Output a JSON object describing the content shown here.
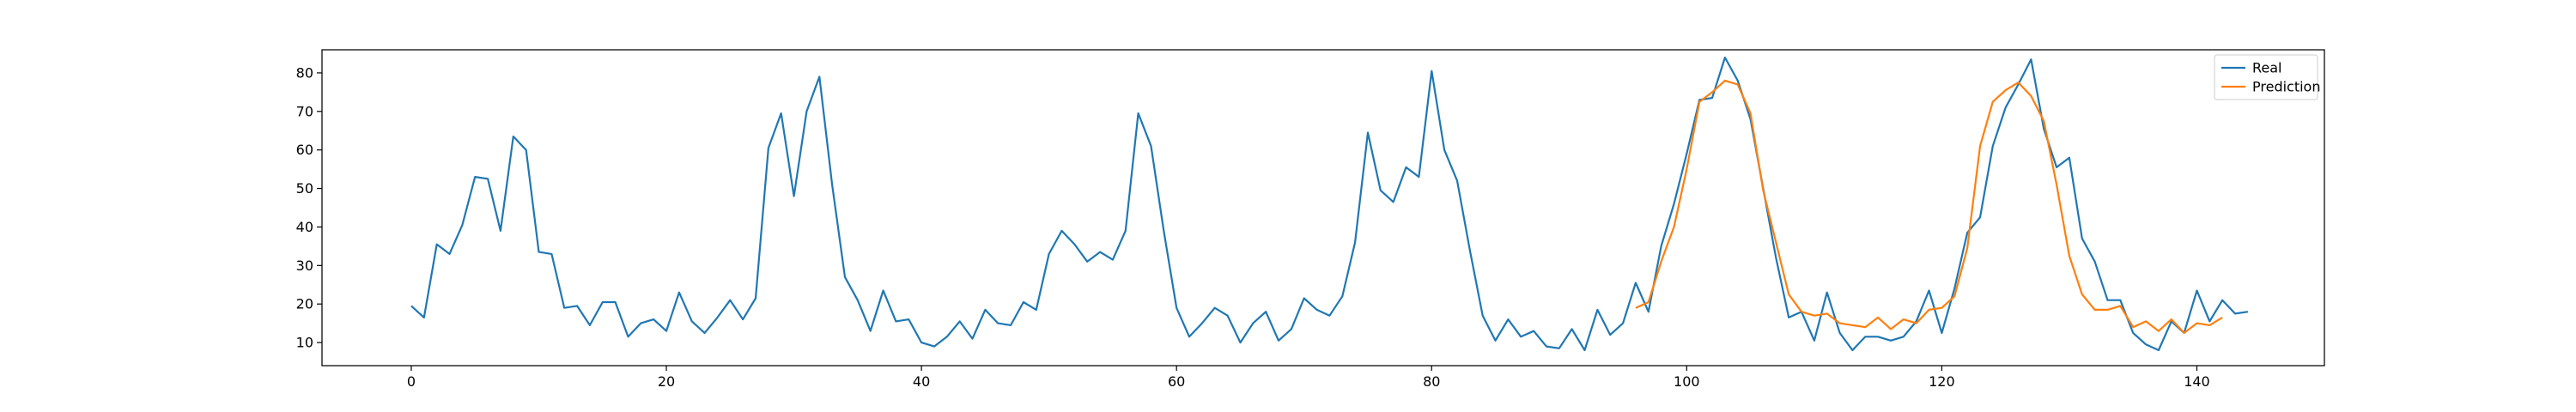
{
  "chart_data": {
    "type": "line",
    "title": "",
    "xlabel": "",
    "ylabel": "",
    "xlim": [
      -7,
      150
    ],
    "ylim": [
      4,
      86
    ],
    "xticks": [
      0,
      20,
      40,
      60,
      80,
      100,
      120,
      140
    ],
    "yticks": [
      10,
      20,
      30,
      40,
      50,
      60,
      70,
      80
    ],
    "grid": false,
    "legend_position": "top-right",
    "series": [
      {
        "name": "Real",
        "color": "#1f77b4",
        "x_start": 0,
        "values": [
          19.5,
          16.5,
          35.5,
          33,
          40.5,
          53,
          52.5,
          39,
          63.5,
          60,
          33.5,
          33,
          19,
          19.5,
          14.5,
          20.5,
          20.5,
          11.5,
          15,
          16,
          13,
          23,
          15.5,
          12.5,
          16.5,
          21,
          16,
          21.5,
          60.5,
          69.5,
          48,
          70,
          79,
          51,
          27,
          21,
          13,
          23.5,
          15.5,
          16,
          10,
          9,
          11.5,
          15.5,
          11,
          18.5,
          15,
          14.5,
          20.5,
          18.5,
          33,
          39,
          35.5,
          31,
          33.5,
          31.5,
          39,
          69.5,
          61,
          39,
          19,
          11.5,
          15,
          19,
          17,
          10,
          15,
          18,
          10.5,
          13.5,
          21.5,
          18.5,
          17,
          22,
          36,
          64.5,
          49.5,
          46.5,
          55.5,
          53,
          80.5,
          60,
          52,
          34,
          17,
          10.5,
          16,
          11.5,
          13,
          9,
          8.5,
          13.5,
          8,
          18.5,
          12,
          15,
          25.5,
          18,
          35,
          46,
          59,
          73,
          73.5,
          84,
          78,
          68,
          50,
          32,
          16.5,
          18,
          10.5,
          23,
          12.5,
          8,
          11.5,
          11.5,
          10.5,
          11.5,
          15.5,
          23.5,
          12.5,
          24,
          38.5,
          42.5,
          61,
          71,
          77,
          83.5,
          65.5,
          55.5,
          58,
          37,
          31,
          21,
          21,
          12.5,
          9.5,
          8,
          15.5,
          12.5,
          23.5,
          15.5,
          21,
          17.5,
          18
        ]
      },
      {
        "name": "Prediction",
        "color": "#ff7f0e",
        "x_start": 96,
        "values": [
          19,
          20.5,
          31,
          40,
          55,
          72.5,
          75,
          78,
          77,
          69.5,
          49.5,
          36,
          22.5,
          18,
          17,
          17.5,
          15,
          14.5,
          14,
          16.5,
          13.5,
          16,
          15,
          18.5,
          19,
          22,
          34.5,
          61,
          72.5,
          75.5,
          77.5,
          74,
          67.5,
          51,
          32.5,
          22.5,
          18.5,
          18.5,
          19.5,
          14,
          15.5,
          13,
          16,
          12.5,
          15,
          14.5,
          16.5
        ]
      }
    ]
  }
}
